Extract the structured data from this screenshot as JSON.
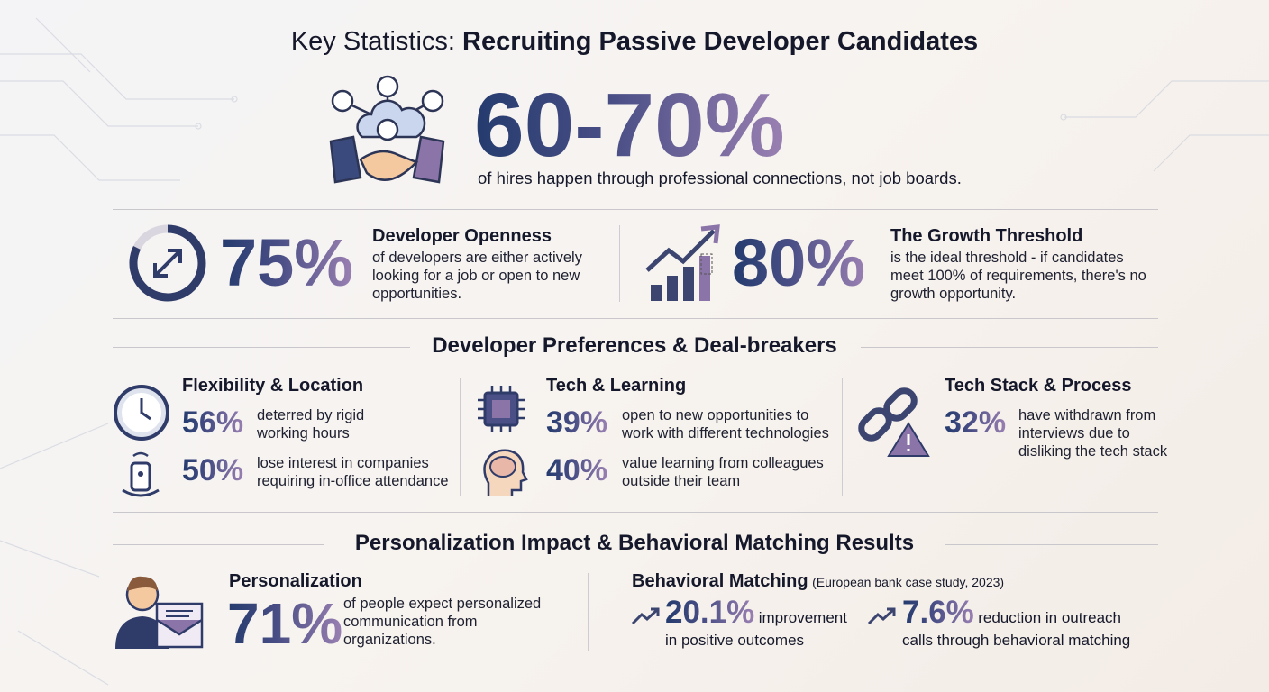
{
  "header": {
    "title_light": "Key Statistics:",
    "title_bold": "Recruiting Passive Developer Candidates"
  },
  "hero": {
    "value": "60-70%",
    "text": "of hires happen through professional connections, not job boards."
  },
  "stats": [
    {
      "value": "75%",
      "heading": "Developer Openness",
      "text": "of developers are either actively looking for a job or open to new opportunities."
    },
    {
      "value": "80%",
      "heading": "The Growth Threshold",
      "text": "is the ideal threshold - if candidates meet 100% of requirements, there's no growth opportunity."
    }
  ],
  "preferences": {
    "title": "Developer Preferences & Deal-breakers",
    "columns": [
      {
        "heading": "Flexibility & Location",
        "items": [
          {
            "value": "56%",
            "text": "deterred by rigid working hours"
          },
          {
            "value": "50%",
            "text": "lose interest in companies requiring in-office attendance"
          }
        ]
      },
      {
        "heading": "Tech & Learning",
        "items": [
          {
            "value": "39%",
            "text": "open to new opportunities to work with different technologies"
          },
          {
            "value": "40%",
            "text": "value learning from colleagues outside their team"
          }
        ]
      },
      {
        "heading": "Tech Stack & Process",
        "items": [
          {
            "value": "32%",
            "text": "have withdrawn from interviews due to disliking the tech stack"
          }
        ]
      }
    ]
  },
  "results": {
    "title": "Personalization Impact & Behavioral Matching Results",
    "personalization": {
      "heading": "Personalization",
      "value": "71%",
      "text": "of people expect personalized communication from organizations."
    },
    "behavioral": {
      "heading": "Behavioral Matching",
      "note": "(European bank case study, 2023)",
      "items": [
        {
          "value": "20.1%",
          "text": "improvement in positive outcomes"
        },
        {
          "value": "7.6%",
          "text": "reduction in outreach calls through behavioral matching"
        }
      ]
    }
  }
}
